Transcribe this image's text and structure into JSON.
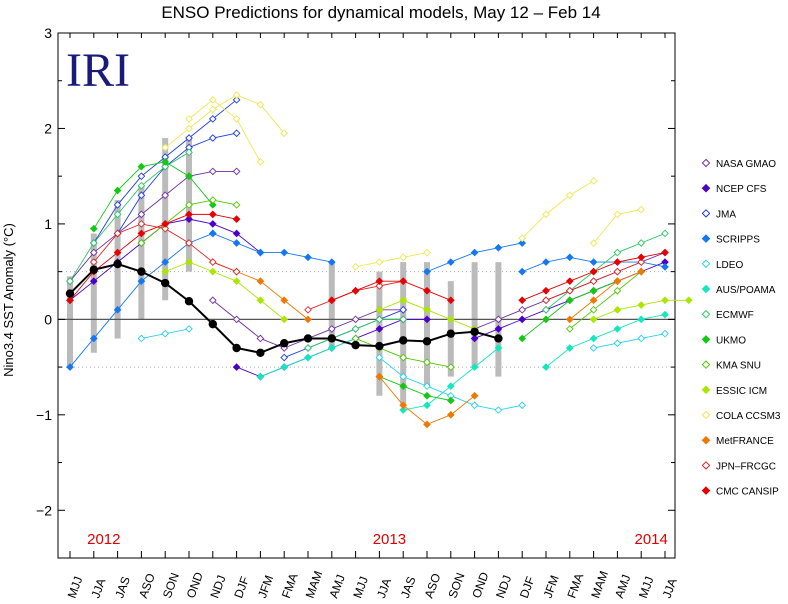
{
  "chart_data": {
    "type": "line",
    "title": "ENSO Predictions for dynamical models, May 12 – Feb 14",
    "logo_text": "IRI",
    "ylabel": "Nino3.4 SST Anomaly (°C)",
    "xlabel": "",
    "ylim": [
      -2.5,
      3
    ],
    "yticks": [
      "3",
      "2",
      "1",
      "0",
      "−1",
      "−2"
    ],
    "ytick_values": [
      3,
      2,
      1,
      0,
      -1,
      -2
    ],
    "threshold_lines": [
      0.5,
      -0.5
    ],
    "categories": [
      "MJJ",
      "JJA",
      "JAS",
      "ASO",
      "SON",
      "OND",
      "NDJ",
      "DJF",
      "JFM",
      "FMA",
      "MAM",
      "AMJ",
      "MJJ",
      "JJA",
      "JAS",
      "ASO",
      "SON",
      "OND",
      "NDJ",
      "DJF",
      "JFM",
      "FMA",
      "MAM",
      "AMJ",
      "MJJ",
      "JJA"
    ],
    "year_labels": [
      {
        "text": "2012",
        "index": 1,
        "color": "#e00000"
      },
      {
        "text": "2013",
        "index": 13,
        "color": "#e00000"
      },
      {
        "text": "2014",
        "index": 24,
        "color": "#e00000"
      }
    ],
    "observed": {
      "name": "Observed",
      "color": "#000000",
      "values": [
        0.27,
        0.52,
        0.58,
        0.5,
        0.38,
        0.19,
        -0.05,
        -0.3,
        -0.35,
        -0.25,
        -0.2,
        -0.2,
        -0.27,
        -0.28,
        -0.22,
        -0.23,
        -0.15,
        -0.13,
        -0.2
      ]
    },
    "ranges": [
      {
        "index": 0,
        "min": -0.5,
        "max": 0.45
      },
      {
        "index": 1,
        "min": -0.35,
        "max": 0.9
      },
      {
        "index": 2,
        "min": -0.2,
        "max": 1.25
      },
      {
        "index": 3,
        "min": 0.0,
        "max": 1.4
      },
      {
        "index": 4,
        "min": 0.2,
        "max": 1.9
      },
      {
        "index": 5,
        "min": 0.5,
        "max": 1.9
      },
      {
        "index": 11,
        "min": -0.3,
        "max": 0.6
      },
      {
        "index": 13,
        "min": -0.8,
        "max": 0.5
      },
      {
        "index": 14,
        "min": -0.9,
        "max": 0.6
      },
      {
        "index": 15,
        "min": -0.7,
        "max": 0.6
      },
      {
        "index": 16,
        "min": -0.6,
        "max": 0.4
      },
      {
        "index": 17,
        "min": -0.5,
        "max": 0.6
      },
      {
        "index": 18,
        "min": -0.6,
        "max": 0.6
      }
    ],
    "series": [
      {
        "name": "NASA GMAO",
        "color": "#7030a0",
        "marker": "open",
        "forecasts": [
          {
            "start": 0,
            "values": [
              0.4,
              0.7,
              0.9,
              1.1,
              1.3,
              1.5,
              1.55,
              1.55
            ]
          },
          {
            "start": 6,
            "values": [
              0.2,
              0.0,
              -0.2,
              -0.3,
              -0.2,
              -0.1,
              0.0,
              0.1,
              0.1
            ]
          },
          {
            "start": 17,
            "values": [
              -0.1,
              0.0,
              0.1,
              0.2,
              0.3,
              0.4,
              0.5,
              0.6,
              0.7
            ]
          }
        ]
      },
      {
        "name": "NCEP CFS",
        "color": "#4b00c8",
        "marker": "filled",
        "forecasts": [
          {
            "start": 0,
            "values": [
              0.2,
              0.4,
              0.6,
              0.8,
              1.0,
              1.05,
              1.0,
              0.9,
              0.7
            ]
          },
          {
            "start": 7,
            "values": [
              -0.5,
              -0.6,
              -0.5,
              -0.4,
              -0.3,
              -0.2,
              -0.1,
              0.0,
              0.0
            ]
          },
          {
            "start": 17,
            "values": [
              -0.2,
              -0.1,
              0.0,
              0.1,
              0.2,
              0.3,
              0.4,
              0.5,
              0.6
            ]
          }
        ]
      },
      {
        "name": "JMA",
        "color": "#1e3ce6",
        "marker": "open",
        "forecasts": [
          {
            "start": 1,
            "values": [
              0.8,
              1.2,
              1.5,
              1.7,
              1.9,
              2.1,
              2.3
            ]
          },
          {
            "start": 2,
            "values": [
              0.9,
              1.3,
              1.6,
              1.8,
              1.9,
              1.95
            ]
          },
          {
            "start": 9,
            "values": [
              -0.4,
              -0.3,
              -0.2,
              -0.1,
              0.0,
              0.1
            ]
          }
        ]
      },
      {
        "name": "SCRIPPS",
        "color": "#1478f0",
        "marker": "filled",
        "forecasts": [
          {
            "start": 0,
            "values": [
              -0.5,
              -0.2,
              0.1,
              0.4,
              0.6,
              0.8,
              0.9
            ]
          },
          {
            "start": 6,
            "values": [
              0.9,
              0.8,
              0.7,
              0.7,
              0.65,
              0.6
            ]
          },
          {
            "start": 15,
            "values": [
              0.5,
              0.6,
              0.7,
              0.75,
              0.8
            ]
          },
          {
            "start": 19,
            "values": [
              0.5,
              0.6,
              0.65,
              0.6,
              0.6,
              0.6,
              0.55
            ]
          }
        ]
      },
      {
        "name": "LDEO",
        "color": "#28d2f0",
        "marker": "open",
        "forecasts": [
          {
            "start": 3,
            "values": [
              -0.2,
              -0.15,
              -0.1
            ]
          },
          {
            "start": 13,
            "values": [
              -0.4,
              -0.6,
              -0.7,
              -0.8,
              -0.9,
              -0.95,
              -0.9
            ]
          },
          {
            "start": 22,
            "values": [
              -0.3,
              -0.25,
              -0.2,
              -0.15
            ]
          }
        ]
      },
      {
        "name": "AUS/POAMA",
        "color": "#14e6be",
        "marker": "filled",
        "forecasts": [
          {
            "start": 8,
            "values": [
              -0.6,
              -0.5,
              -0.4,
              -0.3,
              -0.2
            ]
          },
          {
            "start": 14,
            "values": [
              -0.95,
              -0.9,
              -0.7,
              -0.5,
              -0.3
            ]
          },
          {
            "start": 20,
            "values": [
              -0.5,
              -0.3,
              -0.2,
              -0.1,
              0.0,
              0.05
            ]
          }
        ]
      },
      {
        "name": "ECMWF",
        "color": "#2dc864",
        "marker": "open",
        "forecasts": [
          {
            "start": 0,
            "values": [
              0.4,
              0.8,
              1.1,
              1.4,
              1.6,
              1.75
            ]
          },
          {
            "start": 10,
            "values": [
              -0.3,
              -0.2,
              -0.1,
              0.0,
              0.0
            ]
          },
          {
            "start": 20,
            "values": [
              0.1,
              0.3,
              0.5,
              0.7,
              0.8,
              0.9
            ]
          }
        ]
      },
      {
        "name": "UKMO",
        "color": "#14c814",
        "marker": "filled",
        "forecasts": [
          {
            "start": 1,
            "values": [
              0.95,
              1.35,
              1.6,
              1.65,
              1.5,
              1.2
            ]
          },
          {
            "start": 13,
            "values": [
              -0.6,
              -0.7,
              -0.8,
              -0.85
            ]
          },
          {
            "start": 19,
            "values": [
              -0.2,
              0.0,
              0.2,
              0.3,
              0.4
            ]
          }
        ]
      },
      {
        "name": "KMA SNU",
        "color": "#50c800",
        "marker": "open",
        "forecasts": [
          {
            "start": 3,
            "values": [
              0.8,
              1.0,
              1.2,
              1.25,
              1.2
            ]
          },
          {
            "start": 12,
            "values": [
              -0.2,
              -0.3,
              -0.4,
              -0.45,
              -0.5
            ]
          },
          {
            "start": 21,
            "values": [
              -0.1,
              0.1,
              0.3,
              0.5
            ]
          }
        ]
      },
      {
        "name": "ESSIC ICM",
        "color": "#aae600",
        "marker": "filled",
        "forecasts": [
          {
            "start": 4,
            "values": [
              0.5,
              0.6,
              0.5,
              0.4,
              0.2,
              0.0
            ]
          },
          {
            "start": 13,
            "values": [
              0.1,
              0.2,
              0.1,
              0.0,
              -0.1
            ]
          },
          {
            "start": 22,
            "values": [
              0.0,
              0.1,
              0.15,
              0.2,
              0.2
            ]
          }
        ]
      },
      {
        "name": "COLA CCSM3",
        "color": "#f0e650",
        "marker": "open",
        "forecasts": [
          {
            "start": 4,
            "values": [
              1.8,
              2.0,
              2.2,
              2.35,
              2.25,
              1.95
            ]
          },
          {
            "start": 5,
            "values": [
              2.1,
              2.3,
              2.1,
              1.65
            ]
          },
          {
            "start": 12,
            "values": [
              0.55,
              0.6,
              0.65,
              0.7
            ]
          },
          {
            "start": 19,
            "values": [
              0.85,
              1.1,
              1.3,
              1.45
            ]
          },
          {
            "start": 22,
            "values": [
              0.8,
              1.1,
              1.15
            ]
          }
        ]
      },
      {
        "name": "MetFRANCE",
        "color": "#f07800",
        "marker": "filled",
        "forecasts": [
          {
            "start": 6,
            "values": [
              0.6,
              0.5,
              0.4,
              0.2,
              0.0
            ]
          },
          {
            "start": 13,
            "values": [
              -0.6,
              -0.9,
              -1.1,
              -1.0,
              -0.8
            ]
          },
          {
            "start": 21,
            "values": [
              0.0,
              0.2,
              0.4,
              0.5
            ]
          }
        ]
      },
      {
        "name": "JPN–FRCGC",
        "color": "#e02828",
        "marker": "open",
        "forecasts": [
          {
            "start": 1,
            "values": [
              0.6,
              0.9,
              1.0,
              0.95,
              0.8,
              0.6,
              0.5
            ]
          },
          {
            "start": 10,
            "values": [
              0.1,
              0.2,
              0.3,
              0.35,
              0.4
            ]
          },
          {
            "start": 20,
            "values": [
              0.2,
              0.3,
              0.4,
              0.5,
              0.6
            ]
          }
        ]
      },
      {
        "name": "CMC CANSIP",
        "color": "#e60000",
        "marker": "filled",
        "forecasts": [
          {
            "start": 0,
            "values": [
              0.2,
              0.5,
              0.7,
              0.9,
              1.0,
              1.1,
              1.1,
              1.05
            ]
          },
          {
            "start": 11,
            "values": [
              0.2,
              0.3,
              0.4,
              0.4,
              0.3,
              0.2
            ]
          },
          {
            "start": 19,
            "values": [
              0.2,
              0.3,
              0.4,
              0.5,
              0.6,
              0.65,
              0.7
            ]
          }
        ]
      }
    ]
  }
}
